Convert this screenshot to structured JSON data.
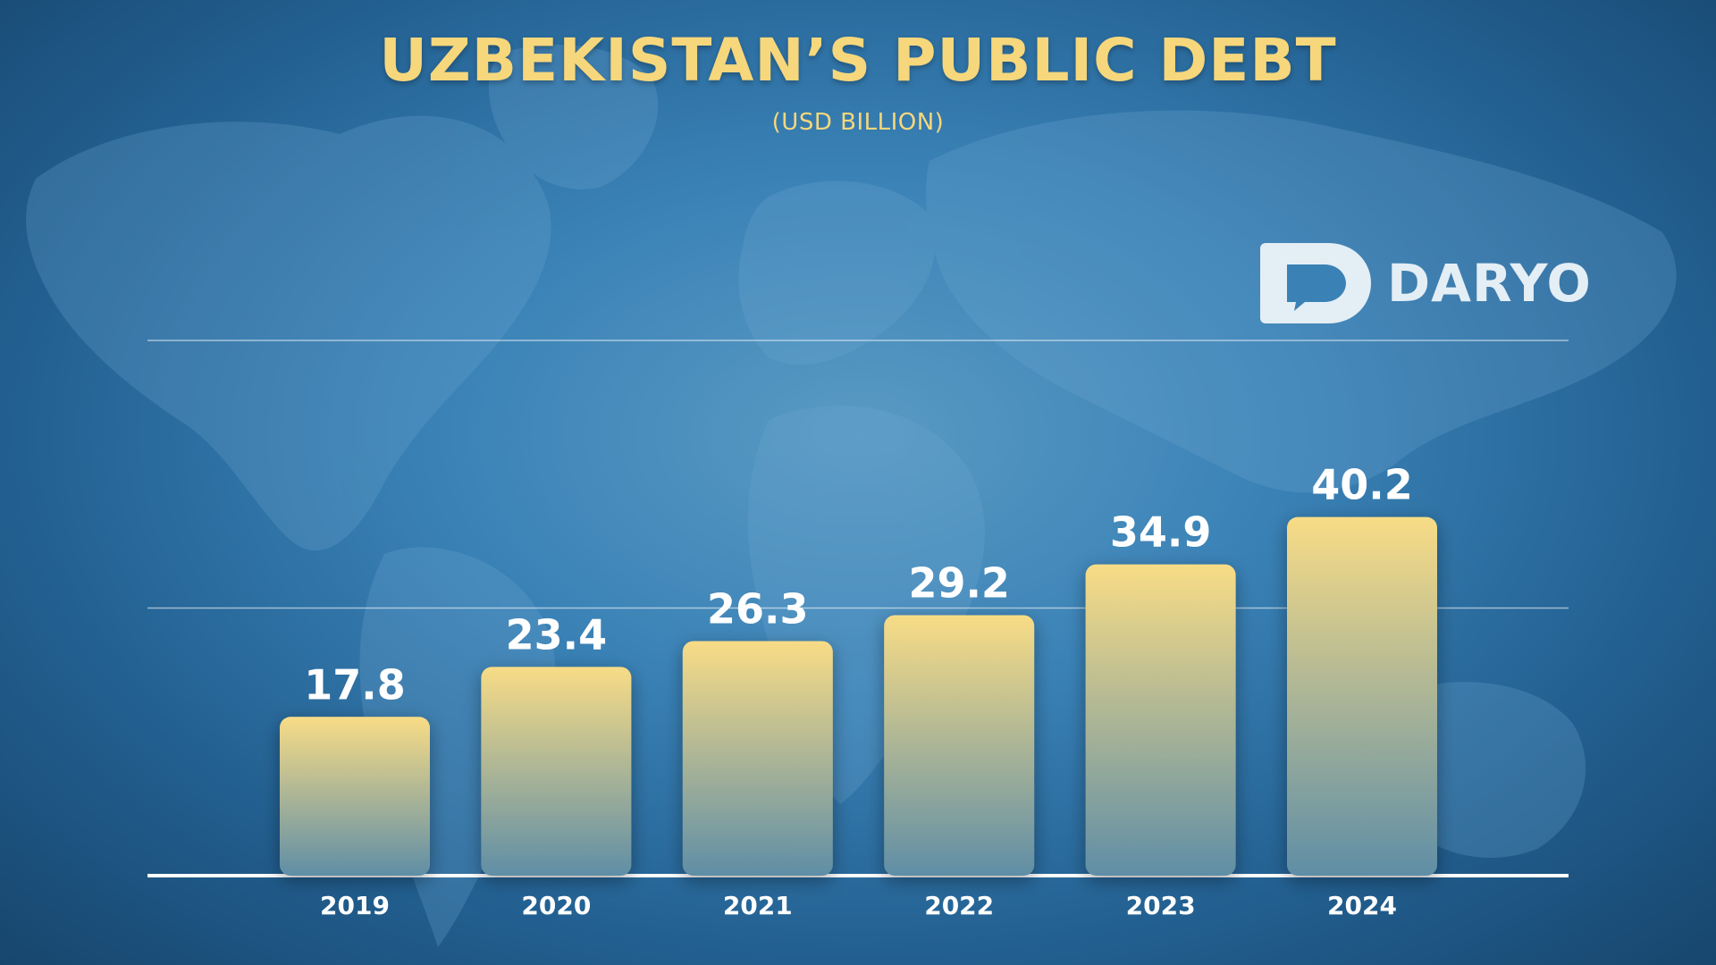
{
  "header": {
    "title": "UZBEKISTAN’S PUBLIC DEBT",
    "subtitle": "(USD BILLION)"
  },
  "brand": {
    "logo_label": "DARYO"
  },
  "colors": {
    "bar_top": "#f8dc86",
    "bar_bottom": "#5f8ea6",
    "value_label": "#ffffff",
    "title": "#f6d77c",
    "logo": "#e4eef5"
  },
  "chart_data": {
    "type": "bar",
    "title": "UZBEKISTAN’S PUBLIC DEBT",
    "subtitle": "(USD BILLION)",
    "categories": [
      "2019",
      "2020",
      "2021",
      "2022",
      "2023",
      "2024"
    ],
    "values": [
      17.8,
      23.4,
      26.3,
      29.2,
      34.9,
      40.2
    ],
    "xlabel": "",
    "ylabel": "",
    "ylim": [
      0,
      60
    ],
    "gridlines": [
      30,
      60
    ],
    "grid": true,
    "legend": "none"
  }
}
